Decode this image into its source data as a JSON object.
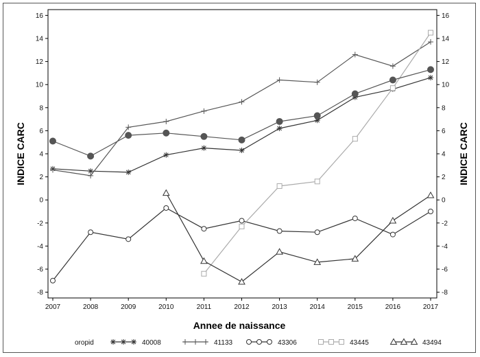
{
  "chart_data": {
    "type": "line",
    "title": "",
    "xlabel": "Annee de naissance",
    "ylabel": "INDICE CARC",
    "ylabel_right": "INDICE CARC",
    "x": [
      2007,
      2008,
      2009,
      2010,
      2011,
      2012,
      2013,
      2014,
      2015,
      2016,
      2017
    ],
    "x_ticks": [
      "2007",
      "2008",
      "2009",
      "2010",
      "2011",
      "2012",
      "2013",
      "2014",
      "2015",
      "2016",
      "2017"
    ],
    "xlim": [
      2007,
      2017
    ],
    "ylim": [
      -8.5,
      16.5
    ],
    "y_ticks": [
      "-8",
      "-6",
      "-4",
      "-2",
      "0",
      "2",
      "4",
      "6",
      "8",
      "10",
      "12",
      "14",
      "16"
    ],
    "y_tick_values": [
      -8,
      -6,
      -4,
      -2,
      0,
      2,
      4,
      6,
      8,
      10,
      12,
      14,
      16
    ],
    "grid": false,
    "legend_title": "oropid",
    "legend_position": "bottom",
    "series": [
      {
        "name": "40008",
        "marker": "star",
        "color": "#333333",
        "x": [
          2007,
          2008,
          2009,
          2010,
          2011,
          2012,
          2013,
          2014,
          2015,
          2016,
          2017
        ],
        "values": [
          2.7,
          2.5,
          2.4,
          3.9,
          4.5,
          4.3,
          6.2,
          6.9,
          8.9,
          9.6,
          10.6
        ]
      },
      {
        "name": "41133",
        "marker": "plus",
        "color": "#555555",
        "x": [
          2007,
          2008,
          2009,
          2010,
          2011,
          2012,
          2013,
          2014,
          2015,
          2016,
          2017
        ],
        "values": [
          2.6,
          2.1,
          6.3,
          6.8,
          7.7,
          8.5,
          10.4,
          10.2,
          12.6,
          11.6,
          13.7
        ]
      },
      {
        "name": "43306",
        "marker": "circle",
        "color": "#333333",
        "x": [
          2007,
          2008,
          2009,
          2010,
          2011,
          2012,
          2013,
          2014,
          2015,
          2016,
          2017
        ],
        "values": [
          -7.0,
          -2.8,
          -3.4,
          -0.7,
          -2.5,
          -1.8,
          -2.7,
          -2.8,
          -1.6,
          -3.0,
          -1.0
        ]
      },
      {
        "name": "43445",
        "marker": "square",
        "color": "#aaaaaa",
        "x": [
          2011,
          2012,
          2013,
          2014,
          2015,
          2016,
          2017
        ],
        "values": [
          -6.4,
          -2.3,
          1.2,
          1.6,
          5.3,
          9.7,
          14.5
        ]
      },
      {
        "name": "43494",
        "marker": "triangle",
        "color": "#333333",
        "x": [
          2010,
          2011,
          2012,
          2013,
          2014,
          2015,
          2016,
          2017
        ],
        "values": [
          0.6,
          -5.3,
          -7.1,
          -4.5,
          -5.4,
          -5.1,
          -1.8,
          0.4
        ]
      },
      {
        "name": "",
        "marker": "filled-circle",
        "color": "#555555",
        "x": [
          2007,
          2008,
          2009,
          2010,
          2011,
          2012,
          2013,
          2014,
          2015,
          2016,
          2017
        ],
        "values": [
          5.1,
          3.8,
          5.6,
          5.8,
          5.5,
          5.2,
          6.8,
          7.3,
          9.2,
          10.4,
          11.3
        ]
      }
    ]
  }
}
